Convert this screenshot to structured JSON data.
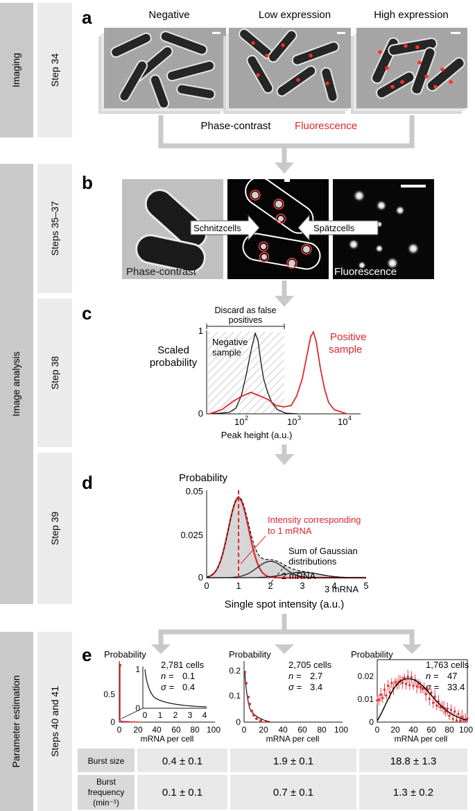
{
  "side_labels": {
    "imaging": "Imaging",
    "image_analysis": "Image analysis",
    "parameter_estimation": "Parameter estimation"
  },
  "steps": {
    "s34": "Step 34",
    "s35_37": "Steps 35–37",
    "s38": "Step 38",
    "s39": "Step 39",
    "s40_41": "Steps 40 and 41"
  },
  "panel_a": {
    "letter": "a",
    "col_titles": [
      "Negative",
      "Low expression",
      "High expression"
    ],
    "phase_label": "Phase-contrast",
    "fluor_label": "Fluorescence",
    "fluor_color": "#e0262c"
  },
  "panel_b": {
    "letter": "b",
    "phase_label": "Phase-contrast",
    "fluor_label": "Fluorescence",
    "schnitz": "Schnitzcells",
    "spatz": "Spätzcells"
  },
  "panel_c": {
    "letter": "c",
    "discard": [
      "Discard as false",
      "positives"
    ],
    "ylabel": [
      "Scaled",
      "probability"
    ],
    "neg_label": [
      "Negative",
      "sample"
    ],
    "pos_label": [
      "Positive",
      "sample"
    ],
    "xlabel": "Peak height (a.u.)",
    "yticks": [
      "1",
      "0"
    ],
    "xticks": [
      {
        "b": "10",
        "e": "2"
      },
      {
        "b": "10",
        "e": "3"
      },
      {
        "b": "10",
        "e": "4"
      }
    ]
  },
  "panel_d": {
    "letter": "d",
    "ylabel": "Probability",
    "yticks": [
      "0.05",
      "0.025",
      "0"
    ],
    "xticks": [
      "0",
      "1",
      "2",
      "3",
      "4",
      "5"
    ],
    "xlabel": "Single spot intensity (a.u.)",
    "annot_red": [
      "Intensity corresponding",
      "to 1 mRNA"
    ],
    "annot_sum": [
      "Sum of Gaussian",
      "distributions"
    ],
    "annot_2": "2 mRNA",
    "annot_3": "3 mRNA"
  },
  "panel_e": {
    "letter": "e",
    "plots": [
      {
        "ylabel": "Probability",
        "cells": "2,781 cells",
        "n": "0.1",
        "sigma": "0.4",
        "yticks": [
          "0.5",
          "0"
        ],
        "xticks": [
          "0",
          "20",
          "40",
          "60",
          "80",
          "100"
        ],
        "inset_yticks": [
          "1",
          "0"
        ],
        "inset_xticks": [
          "0",
          "1",
          "2",
          "3",
          "4"
        ]
      },
      {
        "ylabel": "Probability",
        "cells": "2,705 cells",
        "n": "2.7",
        "sigma": "3.4",
        "yticks": [
          "0.2",
          "0.1",
          "0"
        ],
        "xticks": [
          "0",
          "20",
          "40",
          "60",
          "80",
          "100"
        ]
      },
      {
        "ylabel": "Probability",
        "cells": "1,763 cells",
        "n": "47",
        "sigma": "33.4",
        "yticks": [
          "0.02",
          "0.01",
          "0"
        ],
        "xticks": [
          "0",
          "20",
          "40",
          "60",
          "80",
          "100"
        ]
      }
    ],
    "xlabel": "mRNA per cell",
    "n_sym": "n = ",
    "sigma_sym": "σ = "
  },
  "table": {
    "rows": [
      {
        "label": "Burst size",
        "values": [
          "0.4 ± 0.1",
          "1.9 ± 0.1",
          "18.8 ± 1.3"
        ]
      },
      {
        "label": "Burst frequency (min⁻¹)",
        "values": [
          "0.1 ± 0.1",
          "0.7 ± 0.1",
          "1.3 ± 0.2"
        ]
      }
    ]
  },
  "chart_data": [
    {
      "type": "line",
      "panel": "c",
      "xlabel": "Peak height (a.u.)",
      "ylabel": "Scaled probability",
      "xscale": "log",
      "xlim": [
        30,
        20000
      ],
      "ylim": [
        0,
        1
      ],
      "series": [
        {
          "name": "Negative sample",
          "x": [
            100,
            150,
            200,
            250,
            300,
            400,
            600
          ],
          "y": [
            0.05,
            0.5,
            0.98,
            0.7,
            0.35,
            0.1,
            0.02
          ]
        },
        {
          "name": "Positive sample",
          "x": [
            100,
            200,
            400,
            700,
            1000,
            1500,
            2500,
            3000,
            5000,
            8000
          ],
          "y": [
            0.05,
            0.18,
            0.12,
            0.06,
            0.22,
            0.6,
            0.95,
            0.85,
            0.25,
            0.02
          ]
        }
      ]
    },
    {
      "type": "area",
      "panel": "d",
      "xlabel": "Single spot intensity (a.u.)",
      "ylabel": "Probability",
      "xlim": [
        0,
        5
      ],
      "ylim": [
        0,
        0.055
      ],
      "series": [
        {
          "name": "1 mRNA",
          "mean": 1,
          "peak": 0.051
        },
        {
          "name": "2 mRNA",
          "mean": 2,
          "peak": 0.0105
        },
        {
          "name": "3 mRNA",
          "mean": 3,
          "peak": 0.0035
        }
      ]
    },
    {
      "type": "scatter",
      "panel": "e1",
      "cells": "2,781 cells",
      "xlim": [
        0,
        100
      ],
      "ylim": [
        0,
        1
      ],
      "x": [
        0,
        1,
        2,
        3,
        4
      ],
      "y": [
        0.9,
        0.08,
        0.015,
        0.005,
        0.001
      ]
    },
    {
      "type": "scatter",
      "panel": "e2",
      "cells": "2,705 cells",
      "xlim": [
        0,
        100
      ],
      "ylim": [
        0,
        0.25
      ],
      "x": [
        0,
        2,
        4,
        6,
        8,
        10,
        15,
        20,
        25
      ],
      "y": [
        0.22,
        0.16,
        0.1,
        0.06,
        0.035,
        0.02,
        0.008,
        0.003,
        0.001
      ]
    },
    {
      "type": "scatter",
      "panel": "e3",
      "cells": "1,763 cells",
      "xlim": [
        0,
        100
      ],
      "ylim": [
        0,
        0.03
      ],
      "x": [
        0,
        10,
        20,
        30,
        40,
        50,
        60,
        70,
        80,
        90,
        100
      ],
      "y": [
        0.002,
        0.012,
        0.018,
        0.02,
        0.019,
        0.016,
        0.012,
        0.008,
        0.004,
        0.002,
        0.001
      ]
    }
  ]
}
